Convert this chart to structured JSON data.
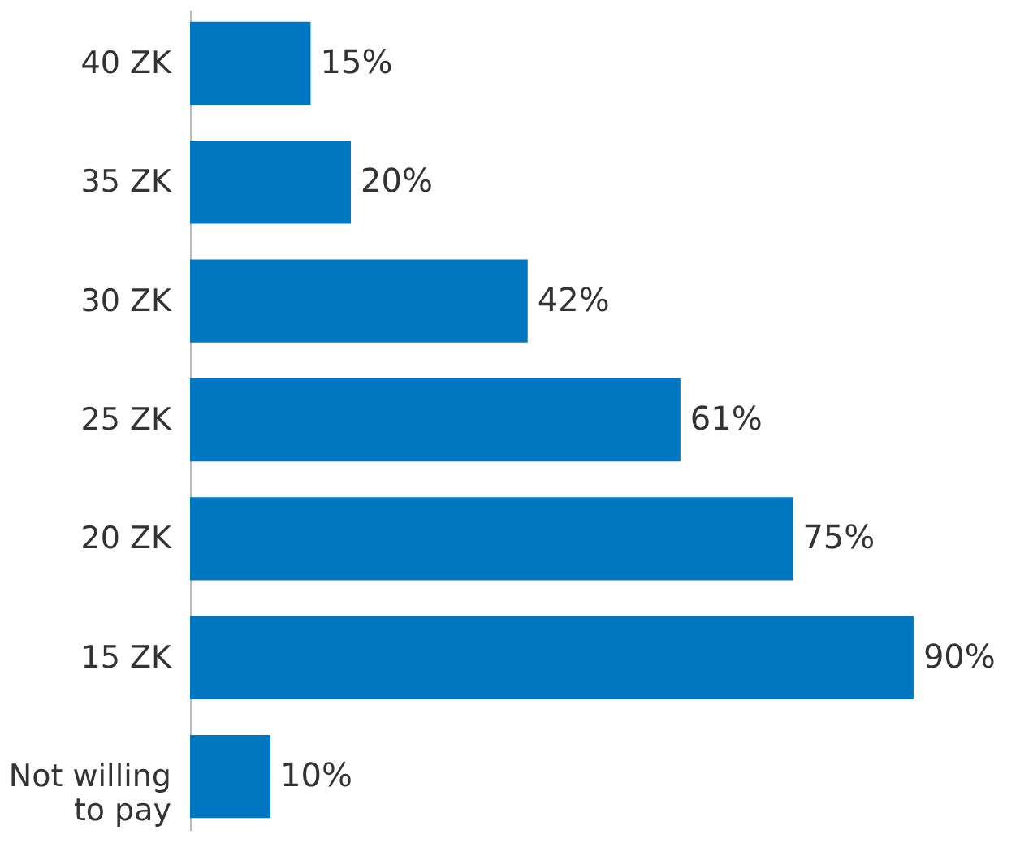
{
  "chart_data": {
    "type": "bar",
    "orientation": "horizontal",
    "categories": [
      "40 ZK",
      "35 ZK",
      "30 ZK",
      "25 ZK",
      "20 ZK",
      "15 ZK",
      "Not willing to pay"
    ],
    "values": [
      15,
      20,
      42,
      61,
      75,
      90,
      10
    ],
    "color": "#0077c0",
    "value_labels": [
      "15%",
      "20%",
      "42%",
      "61%",
      "75%",
      "90%",
      "10%"
    ]
  }
}
